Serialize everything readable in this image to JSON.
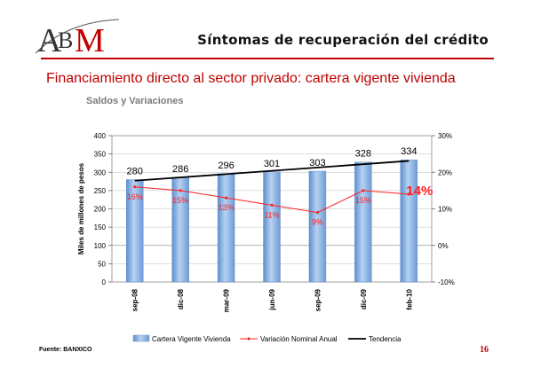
{
  "logo": {
    "text": "ABM",
    "colors": {
      "a": "#333333",
      "m": "#c00000"
    }
  },
  "header": {
    "title": "Síntomas de recuperación del crédito"
  },
  "slide": {
    "title": "Financiamiento directo al sector privado: cartera vigente vivienda"
  },
  "chart_subtitle": "Saldos y Variaciones",
  "chart_data": {
    "type": "bar",
    "categories": [
      "sep-08",
      "dic-08",
      "mar-09",
      "jun-09",
      "sep-09",
      "dic-09",
      "feb-10"
    ],
    "series": [
      {
        "name": "Cartera Vigente Vivienda",
        "type": "bar",
        "axis": "left",
        "values": [
          280,
          286,
          296,
          301,
          303,
          328,
          334
        ],
        "color": "#8cb4e4"
      },
      {
        "name": "Variación Nominal Anual",
        "type": "line",
        "axis": "right",
        "values": [
          16,
          15,
          13,
          11,
          9,
          15,
          14
        ],
        "labels": [
          "16%",
          "15%",
          "13%",
          "11%",
          "9%",
          "15%",
          "14%"
        ],
        "color": "#ff2020"
      },
      {
        "name": "Tendencia",
        "type": "line",
        "axis": "left",
        "color": "#000000"
      }
    ],
    "bar_labels": [
      "280",
      "286",
      "296",
      "301",
      "303",
      "328",
      "334"
    ],
    "ylabel": "Miles de millones de pesos",
    "ylim": [
      0,
      400
    ],
    "yticks": [
      "0",
      "50",
      "100",
      "150",
      "200",
      "250",
      "300",
      "350",
      "400"
    ],
    "y2lim": [
      -10,
      30
    ],
    "y2ticks": [
      "-10%",
      "0%",
      "10%",
      "20%",
      "30%"
    ],
    "grid": "horizontal",
    "legend": "bottom",
    "reference_line_y2": 0
  },
  "footer": {
    "source": "Fuente: BANXICO",
    "page": "16"
  }
}
